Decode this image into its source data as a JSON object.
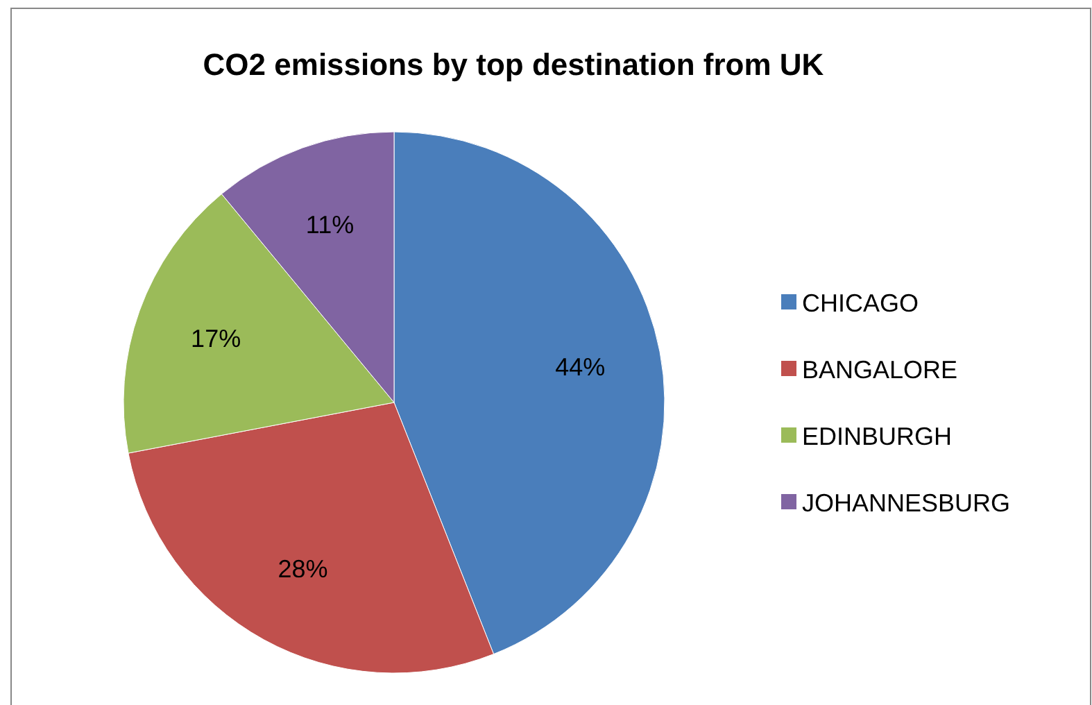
{
  "chart_data": {
    "type": "pie",
    "title": "CO2 emissions by top destination from UK",
    "categories": [
      "CHICAGO",
      "BANGALORE",
      "EDINBURGH",
      "JOHANNESBURG"
    ],
    "values": [
      44,
      28,
      17,
      11
    ],
    "colors": [
      "#4a7ebb",
      "#c0504d",
      "#9bbb59",
      "#8064a2"
    ],
    "value_labels": [
      "44%",
      "28%",
      "17%",
      "11%"
    ],
    "legend": "right"
  }
}
